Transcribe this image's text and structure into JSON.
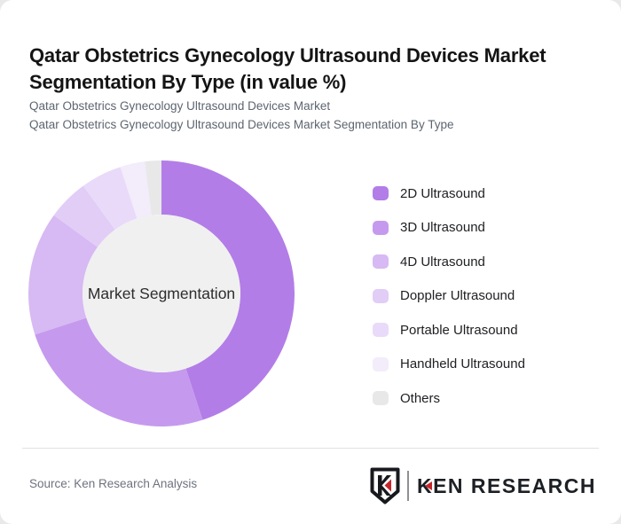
{
  "header": {
    "title": "Qatar Obstetrics Gynecology Ultrasound Devices Market Segmentation By Type (in value %)",
    "subtitle_line1": "Qatar Obstetrics Gynecology Ultrasound Devices Market",
    "subtitle_line2": "Qatar Obstetrics Gynecology Ultrasound Devices Market Segmentation By Type"
  },
  "chart_data": {
    "type": "pie",
    "variant": "donut",
    "unit": "value %",
    "center_label": "Market Segmentation",
    "start_angle_deg": 0,
    "direction": "clockwise",
    "legend_position": "right",
    "inner_circle_color": "#f0f0f0",
    "segments": [
      {
        "label": "2D Ultrasound",
        "value": 45,
        "color": "#b37de7"
      },
      {
        "label": "3D Ultrasound",
        "value": 25,
        "color": "#c59aee"
      },
      {
        "label": "4D Ultrasound",
        "value": 15,
        "color": "#d7b9f3"
      },
      {
        "label": "Doppler Ultrasound",
        "value": 5,
        "color": "#e1cdf6"
      },
      {
        "label": "Portable Ultrasound",
        "value": 5,
        "color": "#e9dafa"
      },
      {
        "label": "Handheld Ultrasound",
        "value": 3,
        "color": "#f2ecfb"
      },
      {
        "label": "Others",
        "value": 2,
        "color": "#e8e8e9"
      }
    ]
  },
  "footer": {
    "source": "Source: Ken Research Analysis",
    "logo": {
      "badge_letter": "K",
      "wordmark_k": "K",
      "wordmark_rest": "EN RESEARCH",
      "accent_color": "#c5262c",
      "dark_color": "#1c2025"
    }
  }
}
